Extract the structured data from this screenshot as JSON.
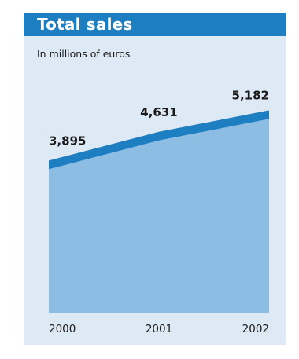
{
  "title": "Total sales",
  "subtitle": "In millions of euros",
  "colors": {
    "panel_background": "#dde9f4",
    "title_bar": "#1d7ec1",
    "title_text": "#ffffff",
    "area_fill": "#8ebde3",
    "line_band": "#1d7ec1",
    "label_text": "#1a1a1a"
  },
  "chart_data": {
    "type": "area",
    "title": "Total sales",
    "subtitle": "In millions of euros",
    "categories": [
      "2000",
      "2001",
      "2002"
    ],
    "values": [
      3895,
      4631,
      5182
    ],
    "data_labels": [
      "3,895",
      "4,631",
      "5,182"
    ],
    "ylim": [
      0,
      5250
    ],
    "grid": false,
    "legend": "none",
    "xlabel": "",
    "ylabel": ""
  }
}
